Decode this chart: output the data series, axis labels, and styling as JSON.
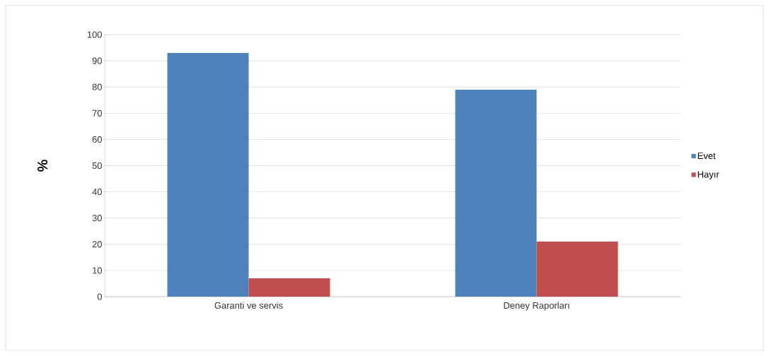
{
  "chart_data": {
    "type": "bar",
    "ylabel": "%",
    "categories": [
      "Garanti ve servis",
      "Deney Raporları"
    ],
    "series": [
      {
        "name": "Evet",
        "color": "#4f81bd",
        "values": [
          93,
          79
        ]
      },
      {
        "name": "Hayır",
        "color": "#c0504d",
        "values": [
          7,
          21
        ]
      }
    ],
    "ylim": [
      0,
      100
    ],
    "yticks": [
      0,
      10,
      20,
      30,
      40,
      50,
      60,
      70,
      80,
      90,
      100
    ],
    "grid": "y",
    "legend": "right"
  }
}
